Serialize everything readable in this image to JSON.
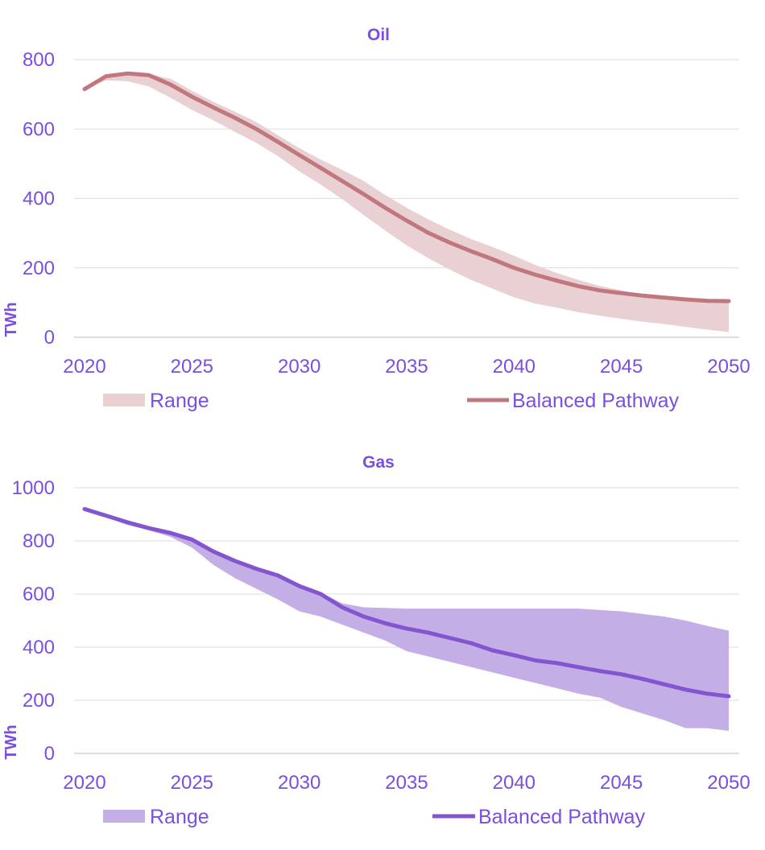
{
  "chart_data": [
    {
      "type": "line",
      "title": "Oil",
      "ylabel": "TWh",
      "xlabel": "",
      "ylim": [
        0,
        800
      ],
      "yticks": [
        0,
        200,
        400,
        600,
        800
      ],
      "xlim": [
        2020,
        2050
      ],
      "xticks": [
        2020,
        2025,
        2030,
        2035,
        2040,
        2045,
        2050
      ],
      "grid": "horizontal",
      "legend_position": "bottom",
      "title_color": "#7a4fe0",
      "line_color": "#c0787e",
      "band_color": "#e9d0d2",
      "tick_color": "#7a4fe0",
      "series": [
        {
          "name": "Balanced Pathway",
          "x": [
            2020,
            2021,
            2022,
            2023,
            2024,
            2025,
            2026,
            2027,
            2028,
            2029,
            2030,
            2031,
            2032,
            2033,
            2034,
            2035,
            2036,
            2037,
            2038,
            2039,
            2040,
            2041,
            2042,
            2043,
            2044,
            2045,
            2046,
            2047,
            2048,
            2049,
            2050
          ],
          "values": [
            715,
            752,
            760,
            755,
            728,
            693,
            662,
            632,
            600,
            563,
            525,
            488,
            450,
            412,
            373,
            336,
            301,
            273,
            248,
            225,
            200,
            180,
            163,
            147,
            135,
            127,
            120,
            114,
            109,
            105,
            104
          ]
        }
      ],
      "range": {
        "name": "Range",
        "x": [
          2020,
          2021,
          2022,
          2023,
          2024,
          2025,
          2026,
          2027,
          2028,
          2029,
          2030,
          2031,
          2032,
          2033,
          2034,
          2035,
          2036,
          2037,
          2038,
          2039,
          2040,
          2041,
          2042,
          2043,
          2044,
          2045,
          2046,
          2047,
          2048,
          2049,
          2050
        ],
        "upper": [
          715,
          752,
          760,
          758,
          745,
          710,
          678,
          650,
          620,
          582,
          545,
          512,
          482,
          450,
          410,
          373,
          340,
          310,
          283,
          260,
          235,
          208,
          185,
          165,
          148,
          135,
          122,
          115,
          110,
          106,
          105
        ],
        "lower": [
          715,
          740,
          738,
          722,
          690,
          655,
          625,
          592,
          560,
          522,
          478,
          440,
          398,
          352,
          308,
          265,
          228,
          195,
          165,
          140,
          115,
          97,
          85,
          72,
          62,
          53,
          45,
          38,
          30,
          22,
          15
        ]
      }
    },
    {
      "type": "line",
      "title": "Gas",
      "ylabel": "TWh",
      "xlabel": "",
      "ylim": [
        0,
        1000
      ],
      "yticks": [
        0,
        200,
        400,
        600,
        800,
        1000
      ],
      "xlim": [
        2020,
        2050
      ],
      "xticks": [
        2020,
        2025,
        2030,
        2035,
        2040,
        2045,
        2050
      ],
      "grid": "horizontal",
      "legend_position": "bottom",
      "title_color": "#7a4fe0",
      "line_color": "#8356d0",
      "band_color": "#c4aee6",
      "tick_color": "#7a4fe0",
      "series": [
        {
          "name": "Balanced Pathway",
          "x": [
            2020,
            2021,
            2022,
            2023,
            2024,
            2025,
            2026,
            2027,
            2028,
            2029,
            2030,
            2031,
            2032,
            2033,
            2034,
            2035,
            2036,
            2037,
            2038,
            2039,
            2040,
            2041,
            2042,
            2043,
            2044,
            2045,
            2046,
            2047,
            2048,
            2049,
            2050
          ],
          "values": [
            920,
            895,
            870,
            848,
            830,
            805,
            760,
            725,
            695,
            670,
            630,
            600,
            550,
            515,
            490,
            470,
            455,
            435,
            415,
            388,
            370,
            350,
            340,
            325,
            310,
            298,
            280,
            260,
            240,
            225,
            215
          ]
        }
      ],
      "range": {
        "name": "Range",
        "x": [
          2020,
          2021,
          2022,
          2023,
          2024,
          2025,
          2026,
          2027,
          2028,
          2029,
          2030,
          2031,
          2032,
          2033,
          2034,
          2035,
          2036,
          2037,
          2038,
          2039,
          2040,
          2041,
          2042,
          2043,
          2044,
          2045,
          2046,
          2047,
          2048,
          2049,
          2050
        ],
        "upper": [
          920,
          895,
          870,
          848,
          832,
          808,
          765,
          730,
          700,
          675,
          635,
          605,
          565,
          550,
          548,
          545,
          545,
          545,
          545,
          545,
          545,
          545,
          545,
          545,
          540,
          535,
          525,
          515,
          500,
          480,
          462
        ],
        "lower": [
          920,
          890,
          860,
          840,
          815,
          775,
          710,
          660,
          620,
          580,
          535,
          515,
          485,
          455,
          425,
          385,
          365,
          345,
          325,
          305,
          285,
          265,
          245,
          225,
          210,
          175,
          150,
          125,
          95,
          95,
          85
        ]
      }
    }
  ]
}
